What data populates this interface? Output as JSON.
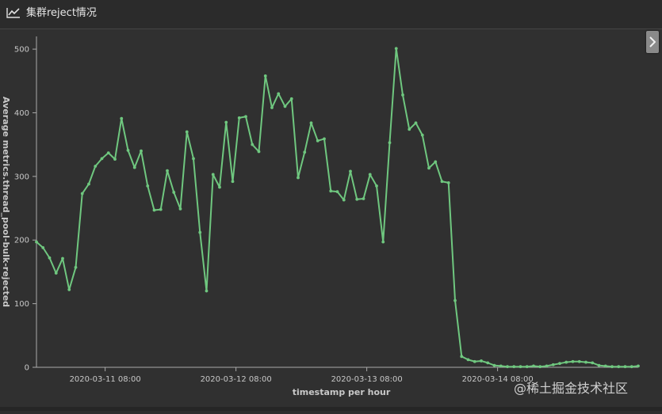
{
  "panel": {
    "title": "集群reject情况",
    "icon": "line-chart-icon",
    "side_toggle_icon": "chevron-right-icon"
  },
  "watermark": {
    "text": "@稀土掘金技术社区"
  },
  "colors": {
    "background": "#303030",
    "header": "#2b2b2b",
    "series": "#6fc77f",
    "axis": "#aaaaaa",
    "text": "#c8c8c8"
  },
  "chart_data": {
    "type": "line",
    "title": "",
    "xlabel": "timestamp per hour",
    "ylabel": "Average metrics.thread_pool-bulk-rejected",
    "ylim": [
      0,
      520
    ],
    "yticks": [
      0,
      100,
      200,
      300,
      400,
      500
    ],
    "xlim": [
      0,
      92
    ],
    "xticks": [
      {
        "x": 10.5,
        "label": "2020-03-11 08:00"
      },
      {
        "x": 30.5,
        "label": "2020-03-12 08:00"
      },
      {
        "x": 50.5,
        "label": "2020-03-13 08:00"
      },
      {
        "x": 70.5,
        "label": "2020-03-14 08:00"
      }
    ],
    "grid": false,
    "series": [
      {
        "values": [
          197,
          188,
          172,
          148,
          171,
          122,
          157,
          273,
          288,
          316,
          328,
          337,
          327,
          391,
          341,
          314,
          340,
          285,
          247,
          248,
          309,
          275,
          249,
          370,
          328,
          212,
          120,
          303,
          283,
          385,
          292,
          392,
          394,
          350,
          339,
          458,
          408,
          430,
          410,
          422,
          298,
          338,
          384,
          356,
          359,
          277,
          276,
          263,
          308,
          264,
          265,
          303,
          285,
          197,
          353,
          501,
          428,
          374,
          384,
          365,
          313,
          323,
          292,
          290,
          105,
          17,
          12,
          9,
          10,
          7,
          3,
          2,
          1,
          1,
          1,
          1,
          2,
          1,
          2,
          4,
          6,
          8,
          9,
          9,
          8,
          7,
          3,
          2,
          1,
          1,
          1,
          1,
          2
        ]
      }
    ]
  }
}
